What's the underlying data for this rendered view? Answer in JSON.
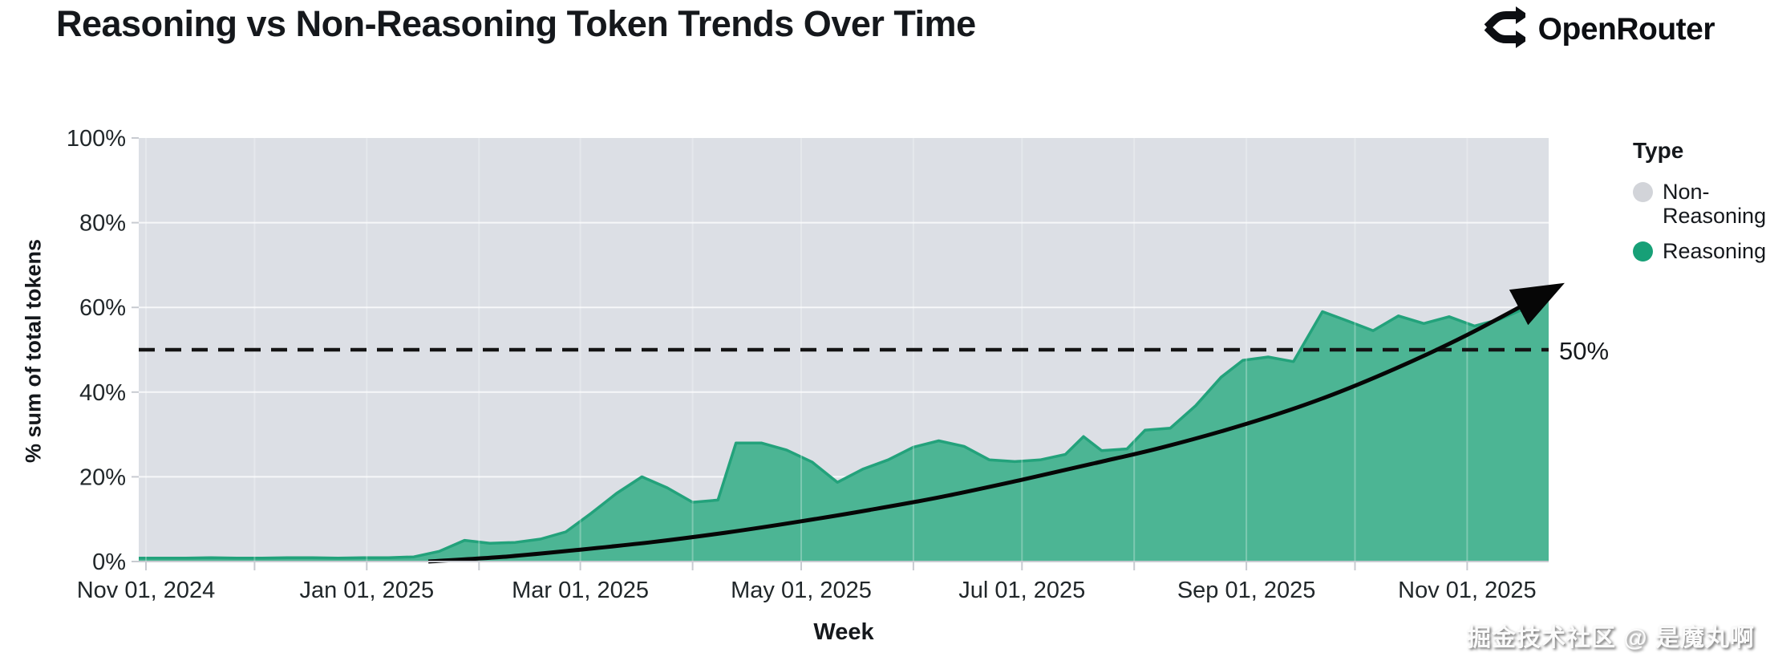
{
  "header": {
    "title": "Reasoning vs Non-Reasoning Token Trends Over Time",
    "brand": "OpenRouter"
  },
  "watermark": "掘金技术社区 @ 是魔丸啊",
  "chart_data": {
    "type": "area",
    "stacking": "percent",
    "title": "Reasoning vs Non-Reasoning Token Trends Over Time",
    "xlabel": "Week",
    "ylabel": "% sum of total tokens",
    "x_unit": "days since 2024-11-01",
    "x_domain": [
      -2,
      387.5
    ],
    "y_domain": [
      0,
      100
    ],
    "grid": true,
    "x_ticks": [
      {
        "day": 0,
        "label": "Nov 01, 2024"
      },
      {
        "day": 61,
        "label": "Jan 01, 2025"
      },
      {
        "day": 120,
        "label": "Mar 01, 2025"
      },
      {
        "day": 181,
        "label": "May 01, 2025"
      },
      {
        "day": 242,
        "label": "Jul 01, 2025"
      },
      {
        "day": 304,
        "label": "Sep 01, 2025"
      },
      {
        "day": 365,
        "label": "Nov 01, 2025"
      }
    ],
    "x_minor_tick_days": [
      0,
      30,
      61,
      92,
      120,
      151,
      181,
      212,
      242,
      273,
      304,
      334,
      365
    ],
    "y_ticks": [
      {
        "pct": 0,
        "label": "0%"
      },
      {
        "pct": 20,
        "label": "20%"
      },
      {
        "pct": 40,
        "label": "40%"
      },
      {
        "pct": 60,
        "label": "60%"
      },
      {
        "pct": 80,
        "label": "80%"
      },
      {
        "pct": 100,
        "label": "100%"
      }
    ],
    "legend": {
      "title": "Type",
      "position": "right",
      "items": [
        {
          "label": "Non-Reasoning",
          "color": "#d2d4d9"
        },
        {
          "label": "Reasoning",
          "color": "#17a077"
        }
      ]
    },
    "series": [
      {
        "name": "Reasoning",
        "fill": "#4cb594",
        "edge": "#23a27b",
        "points_day_pct": [
          [
            -2,
            0.8
          ],
          [
            4,
            0.8
          ],
          [
            11,
            0.8
          ],
          [
            18,
            0.9
          ],
          [
            25,
            0.8
          ],
          [
            32,
            0.8
          ],
          [
            39,
            0.9
          ],
          [
            46,
            0.9
          ],
          [
            53,
            0.8
          ],
          [
            60,
            0.9
          ],
          [
            67,
            0.9
          ],
          [
            74,
            1.1
          ],
          [
            81,
            2.4
          ],
          [
            88,
            5.0
          ],
          [
            95,
            4.3
          ],
          [
            102,
            4.5
          ],
          [
            109,
            5.3
          ],
          [
            116,
            7.0
          ],
          [
            123,
            11.4
          ],
          [
            130,
            16.1
          ],
          [
            137,
            20.0
          ],
          [
            144,
            17.4
          ],
          [
            151,
            14.0
          ],
          [
            158,
            14.5
          ],
          [
            163,
            28.0
          ],
          [
            170,
            28.0
          ],
          [
            177,
            26.3
          ],
          [
            184,
            23.5
          ],
          [
            191,
            18.7
          ],
          [
            198,
            21.8
          ],
          [
            205,
            24.0
          ],
          [
            212,
            27.0
          ],
          [
            219,
            28.5
          ],
          [
            226,
            27.2
          ],
          [
            233,
            24.0
          ],
          [
            240,
            23.6
          ],
          [
            247,
            24.0
          ],
          [
            254,
            25.3
          ],
          [
            259,
            29.5
          ],
          [
            264,
            26.2
          ],
          [
            271,
            26.6
          ],
          [
            276,
            31.0
          ],
          [
            283,
            31.5
          ],
          [
            290,
            36.8
          ],
          [
            297,
            43.5
          ],
          [
            303,
            47.5
          ],
          [
            310,
            48.3
          ],
          [
            317,
            47.2
          ],
          [
            325,
            59.0
          ],
          [
            332,
            56.8
          ],
          [
            339,
            54.5
          ],
          [
            346,
            58.0
          ],
          [
            353,
            56.2
          ],
          [
            360,
            57.8
          ],
          [
            367,
            55.6
          ],
          [
            374,
            57.2
          ],
          [
            381,
            59.8
          ],
          [
            387.5,
            64.5
          ]
        ]
      },
      {
        "name": "Non-Reasoning",
        "fill": "#dcdfe5",
        "note": "remainder to 100% (stacked above Reasoning)"
      }
    ],
    "annotations": {
      "ref_line": {
        "pct": 50,
        "label": "50%",
        "style": "dashed-black"
      },
      "trend_arrow": {
        "color": "#060606",
        "points_day_pct": [
          [
            78,
            0
          ],
          [
            100,
            1.2
          ],
          [
            120,
            2.8
          ],
          [
            140,
            4.6
          ],
          [
            160,
            6.8
          ],
          [
            181,
            9.5
          ],
          [
            200,
            12.2
          ],
          [
            220,
            15.3
          ],
          [
            242,
            19.3
          ],
          [
            262,
            23.2
          ],
          [
            281,
            27.0
          ],
          [
            304,
            32.5
          ],
          [
            325,
            38.5
          ],
          [
            345,
            45.5
          ],
          [
            365,
            53.5
          ],
          [
            388,
            64.0
          ]
        ]
      }
    }
  }
}
